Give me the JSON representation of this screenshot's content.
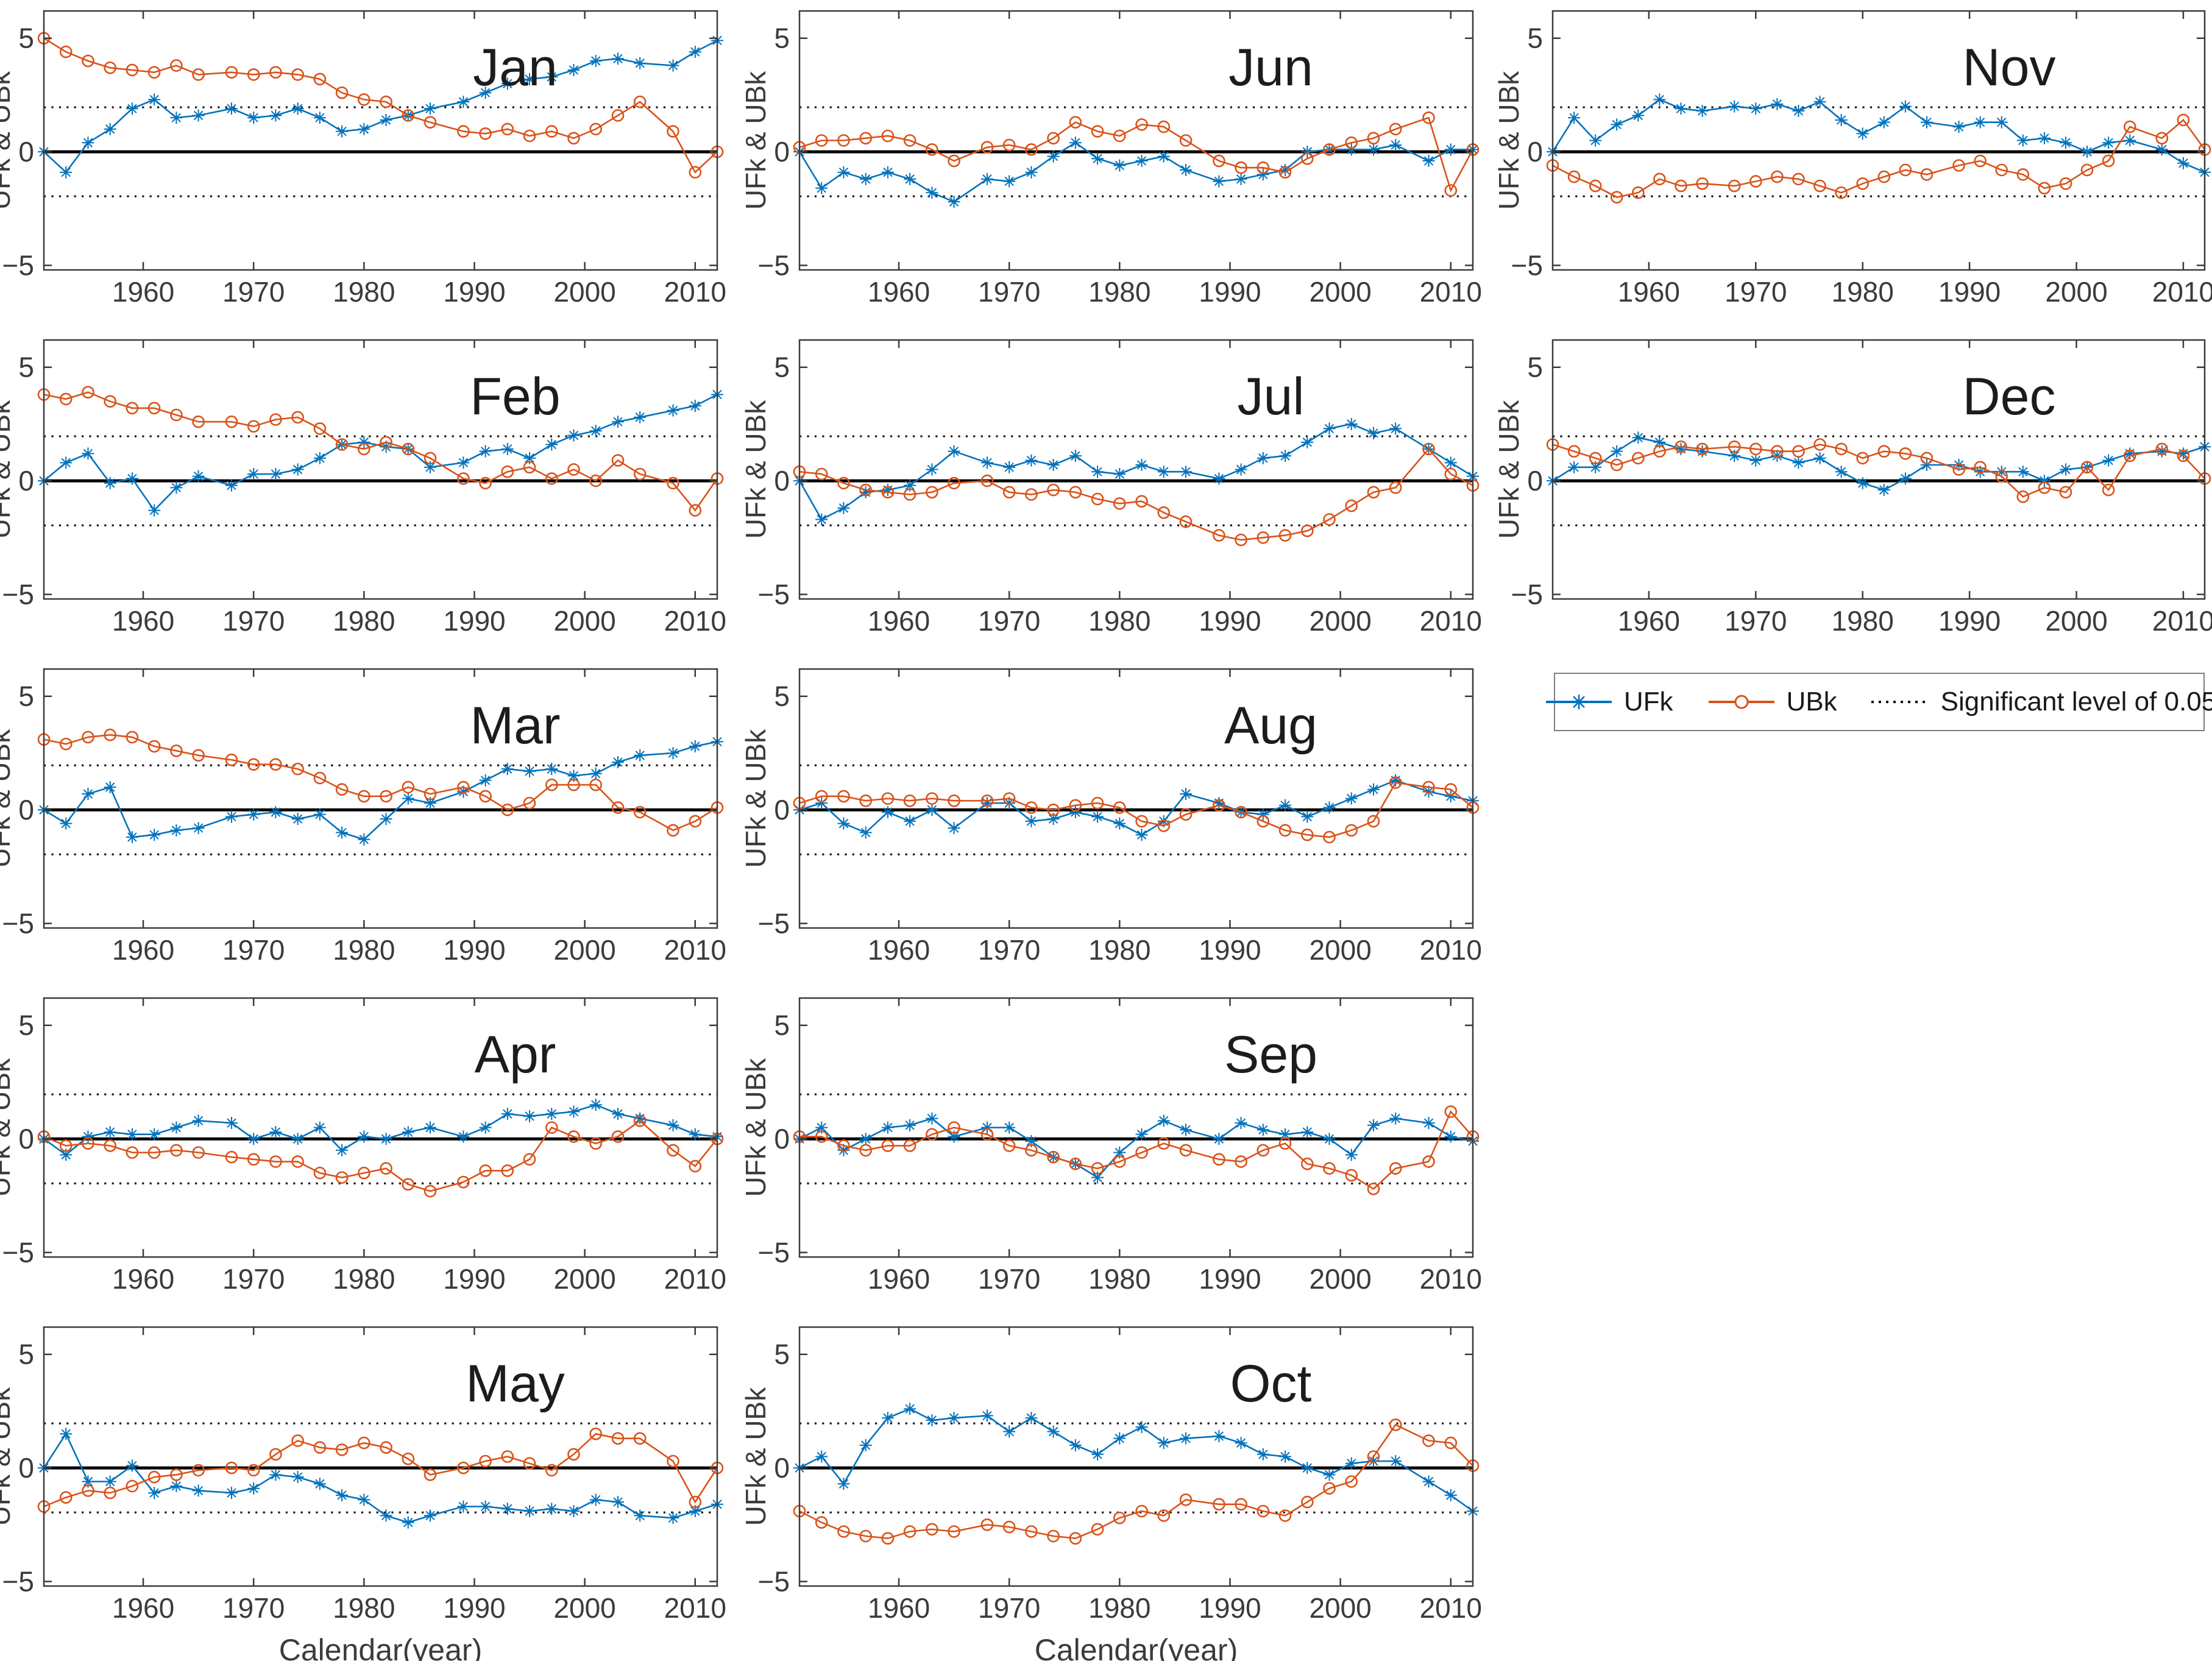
{
  "chart_data": {
    "type": "line",
    "xlabel": "Calendar(year)",
    "ylabel": "UFk & UBk",
    "x_ticks": [
      1960,
      1970,
      1980,
      1990,
      2000,
      2010
    ],
    "y_ticks": [
      5,
      0,
      -5
    ],
    "y_tick_labels": [
      "5",
      "0",
      "−5"
    ],
    "xlim": [
      1951,
      2012
    ],
    "ylim": [
      -5.2,
      6.2
    ],
    "grid": false,
    "significance_level": 1.96,
    "series_names": [
      "UFk",
      "UBk"
    ],
    "years": [
      1951,
      1953,
      1955,
      1957,
      1959,
      1961,
      1963,
      1965,
      1968,
      1970,
      1972,
      1974,
      1976,
      1978,
      1980,
      1982,
      1984,
      1986,
      1989,
      1991,
      1993,
      1995,
      1997,
      1999,
      2001,
      2003,
      2005,
      2008,
      2010,
      2012
    ],
    "months": [
      {
        "title": "Jan",
        "ufk": [
          0,
          -0.9,
          0.4,
          1.0,
          1.9,
          2.3,
          1.5,
          1.6,
          1.9,
          1.5,
          1.6,
          1.9,
          1.5,
          0.9,
          1.0,
          1.4,
          1.6,
          1.9,
          2.2,
          2.6,
          3.0,
          3.2,
          3.3,
          3.6,
          4.0,
          4.1,
          3.9,
          3.8,
          4.4,
          4.9
        ],
        "ubk": [
          5.0,
          4.4,
          4.0,
          3.7,
          3.6,
          3.5,
          3.8,
          3.4,
          3.5,
          3.4,
          3.5,
          3.4,
          3.2,
          2.6,
          2.3,
          2.2,
          1.6,
          1.3,
          0.9,
          0.8,
          1.0,
          0.7,
          0.9,
          0.6,
          1.0,
          1.6,
          2.2,
          0.9,
          -0.9,
          0.0
        ]
      },
      {
        "title": "Feb",
        "ufk": [
          0,
          0.8,
          1.2,
          -0.1,
          0.1,
          -1.3,
          -0.3,
          0.2,
          -0.2,
          0.3,
          0.3,
          0.5,
          1.0,
          1.6,
          1.7,
          1.5,
          1.4,
          0.6,
          0.8,
          1.3,
          1.4,
          1.0,
          1.6,
          2.0,
          2.2,
          2.6,
          2.8,
          3.1,
          3.3,
          3.8
        ],
        "ubk": [
          3.8,
          3.6,
          3.9,
          3.5,
          3.2,
          3.2,
          2.9,
          2.6,
          2.6,
          2.4,
          2.7,
          2.8,
          2.3,
          1.6,
          1.4,
          1.7,
          1.4,
          1.0,
          0.1,
          -0.1,
          0.4,
          0.6,
          0.1,
          0.5,
          0.0,
          0.9,
          0.3,
          -0.1,
          -1.3,
          0.1
        ]
      },
      {
        "title": "Mar",
        "ufk": [
          0,
          -0.6,
          0.7,
          1.0,
          -1.2,
          -1.1,
          -0.9,
          -0.8,
          -0.3,
          -0.2,
          -0.1,
          -0.4,
          -0.2,
          -1.0,
          -1.3,
          -0.4,
          0.5,
          0.3,
          0.8,
          1.3,
          1.8,
          1.7,
          1.8,
          1.5,
          1.6,
          2.1,
          2.4,
          2.5,
          2.8,
          3.0
        ],
        "ubk": [
          3.1,
          2.9,
          3.2,
          3.3,
          3.2,
          2.8,
          2.6,
          2.4,
          2.2,
          2.0,
          2.0,
          1.8,
          1.4,
          0.9,
          0.6,
          0.6,
          1.0,
          0.7,
          1.0,
          0.6,
          0.0,
          0.3,
          1.1,
          1.1,
          1.1,
          0.1,
          -0.1,
          -0.9,
          -0.5,
          0.1
        ]
      },
      {
        "title": "Apr",
        "ufk": [
          0,
          -0.7,
          0.1,
          0.3,
          0.2,
          0.2,
          0.5,
          0.8,
          0.7,
          0.0,
          0.3,
          0.0,
          0.5,
          -0.5,
          0.1,
          0.0,
          0.3,
          0.5,
          0.1,
          0.5,
          1.1,
          1.0,
          1.1,
          1.2,
          1.5,
          1.1,
          0.9,
          0.6,
          0.2,
          0.1
        ],
        "ubk": [
          0.1,
          -0.3,
          -0.2,
          -0.3,
          -0.6,
          -0.6,
          -0.5,
          -0.6,
          -0.8,
          -0.9,
          -1.0,
          -1.0,
          -1.5,
          -1.7,
          -1.5,
          -1.3,
          -2.0,
          -2.3,
          -1.9,
          -1.4,
          -1.4,
          -0.9,
          0.5,
          0.1,
          -0.2,
          0.1,
          0.8,
          -0.5,
          -1.2,
          0.0
        ]
      },
      {
        "title": "May",
        "ufk": [
          0,
          1.5,
          -0.6,
          -0.6,
          0.1,
          -1.1,
          -0.8,
          -1.0,
          -1.1,
          -0.9,
          -0.3,
          -0.4,
          -0.7,
          -1.2,
          -1.4,
          -2.1,
          -2.4,
          -2.1,
          -1.7,
          -1.7,
          -1.8,
          -1.9,
          -1.8,
          -1.9,
          -1.4,
          -1.5,
          -2.1,
          -2.2,
          -1.9,
          -1.6
        ],
        "ubk": [
          -1.7,
          -1.3,
          -1.0,
          -1.1,
          -0.8,
          -0.4,
          -0.3,
          -0.1,
          0.0,
          -0.1,
          0.6,
          1.2,
          0.9,
          0.8,
          1.1,
          0.9,
          0.4,
          -0.3,
          0.0,
          0.3,
          0.5,
          0.2,
          -0.1,
          0.6,
          1.5,
          1.3,
          1.3,
          0.3,
          -1.5,
          0.0
        ]
      },
      {
        "title": "Jun",
        "ufk": [
          0,
          -1.6,
          -0.9,
          -1.2,
          -0.9,
          -1.2,
          -1.8,
          -2.2,
          -1.2,
          -1.3,
          -0.9,
          -0.2,
          0.4,
          -0.3,
          -0.6,
          -0.4,
          -0.2,
          -0.8,
          -1.3,
          -1.2,
          -1.0,
          -0.8,
          0.0,
          0.1,
          0.1,
          0.1,
          0.3,
          -0.4,
          0.1,
          0.1
        ],
        "ubk": [
          0.2,
          0.5,
          0.5,
          0.6,
          0.7,
          0.5,
          0.1,
          -0.4,
          0.2,
          0.3,
          0.1,
          0.6,
          1.3,
          0.9,
          0.7,
          1.2,
          1.1,
          0.5,
          -0.4,
          -0.7,
          -0.7,
          -0.9,
          -0.3,
          0.1,
          0.4,
          0.6,
          1.0,
          1.5,
          -1.7,
          0.1
        ]
      },
      {
        "title": "Jul",
        "ufk": [
          0,
          -1.7,
          -1.2,
          -0.5,
          -0.4,
          -0.2,
          0.5,
          1.3,
          0.8,
          0.6,
          0.9,
          0.7,
          1.1,
          0.4,
          0.3,
          0.7,
          0.4,
          0.4,
          0.1,
          0.5,
          1.0,
          1.1,
          1.7,
          2.3,
          2.5,
          2.1,
          2.3,
          1.4,
          0.8,
          0.2
        ],
        "ubk": [
          0.4,
          0.3,
          -0.1,
          -0.4,
          -0.5,
          -0.6,
          -0.5,
          -0.1,
          0.0,
          -0.5,
          -0.6,
          -0.4,
          -0.5,
          -0.8,
          -1.0,
          -0.9,
          -1.4,
          -1.8,
          -2.4,
          -2.6,
          -2.5,
          -2.4,
          -2.2,
          -1.7,
          -1.1,
          -0.5,
          -0.3,
          1.4,
          0.3,
          -0.2
        ]
      },
      {
        "title": "Aug",
        "ufk": [
          0,
          0.3,
          -0.6,
          -1.0,
          -0.1,
          -0.5,
          0.0,
          -0.8,
          0.3,
          0.3,
          -0.5,
          -0.4,
          -0.1,
          -0.3,
          -0.6,
          -1.1,
          -0.5,
          0.7,
          0.3,
          -0.1,
          -0.2,
          0.2,
          -0.3,
          0.1,
          0.5,
          0.9,
          1.3,
          0.8,
          0.6,
          0.4
        ],
        "ubk": [
          0.3,
          0.6,
          0.6,
          0.4,
          0.5,
          0.4,
          0.5,
          0.4,
          0.4,
          0.5,
          0.1,
          0.0,
          0.2,
          0.3,
          0.1,
          -0.5,
          -0.7,
          -0.2,
          0.2,
          -0.1,
          -0.5,
          -0.9,
          -1.1,
          -1.2,
          -0.9,
          -0.5,
          1.2,
          1.0,
          0.9,
          0.1
        ]
      },
      {
        "title": "Sep",
        "ufk": [
          0,
          0.5,
          -0.5,
          0.0,
          0.5,
          0.6,
          0.9,
          0.1,
          0.5,
          0.5,
          -0.1,
          -0.8,
          -1.1,
          -1.7,
          -0.6,
          0.2,
          0.8,
          0.4,
          0.0,
          0.7,
          0.4,
          0.2,
          0.3,
          0.0,
          -0.7,
          0.6,
          0.9,
          0.7,
          0.1,
          -0.1
        ],
        "ubk": [
          0.1,
          0.1,
          -0.3,
          -0.5,
          -0.3,
          -0.3,
          0.2,
          0.5,
          0.2,
          -0.3,
          -0.5,
          -0.8,
          -1.1,
          -1.3,
          -1.0,
          -0.6,
          -0.2,
          -0.5,
          -0.9,
          -1.0,
          -0.5,
          -0.2,
          -1.1,
          -1.3,
          -1.6,
          -2.2,
          -1.3,
          -1.0,
          1.2,
          0.1
        ]
      },
      {
        "title": "Oct",
        "ufk": [
          0,
          0.5,
          -0.7,
          1.0,
          2.2,
          2.6,
          2.1,
          2.2,
          2.3,
          1.6,
          2.2,
          1.6,
          1.0,
          0.6,
          1.3,
          1.8,
          1.1,
          1.3,
          1.4,
          1.1,
          0.6,
          0.5,
          0.0,
          -0.3,
          0.2,
          0.3,
          0.3,
          -0.6,
          -1.2,
          -1.9
        ],
        "ubk": [
          -1.9,
          -2.4,
          -2.8,
          -3.0,
          -3.1,
          -2.8,
          -2.7,
          -2.8,
          -2.5,
          -2.6,
          -2.8,
          -3.0,
          -3.1,
          -2.7,
          -2.2,
          -1.9,
          -2.1,
          -1.4,
          -1.6,
          -1.6,
          -1.9,
          -2.1,
          -1.5,
          -0.9,
          -0.6,
          0.5,
          1.9,
          1.2,
          1.1,
          0.1
        ]
      },
      {
        "title": "Nov",
        "ufk": [
          0,
          1.5,
          0.5,
          1.2,
          1.6,
          2.3,
          1.9,
          1.8,
          2.0,
          1.9,
          2.1,
          1.8,
          2.2,
          1.4,
          0.8,
          1.3,
          2.0,
          1.3,
          1.1,
          1.3,
          1.3,
          0.5,
          0.6,
          0.4,
          0.0,
          0.4,
          0.5,
          0.1,
          -0.5,
          -0.9
        ],
        "ubk": [
          -0.6,
          -1.1,
          -1.5,
          -2.0,
          -1.8,
          -1.2,
          -1.5,
          -1.4,
          -1.5,
          -1.3,
          -1.1,
          -1.2,
          -1.5,
          -1.8,
          -1.4,
          -1.1,
          -0.8,
          -1.0,
          -0.6,
          -0.4,
          -0.8,
          -1.0,
          -1.6,
          -1.4,
          -0.8,
          -0.4,
          1.1,
          0.6,
          1.4,
          0.1
        ]
      },
      {
        "title": "Dec",
        "ufk": [
          0,
          0.6,
          0.6,
          1.3,
          1.9,
          1.7,
          1.4,
          1.3,
          1.1,
          0.9,
          1.1,
          0.8,
          1.0,
          0.4,
          -0.1,
          -0.4,
          0.1,
          0.7,
          0.7,
          0.4,
          0.4,
          0.4,
          0.0,
          0.5,
          0.6,
          0.9,
          1.2,
          1.3,
          1.2,
          1.5
        ],
        "ubk": [
          1.6,
          1.3,
          1.0,
          0.7,
          1.0,
          1.3,
          1.5,
          1.4,
          1.5,
          1.4,
          1.3,
          1.3,
          1.6,
          1.4,
          1.0,
          1.3,
          1.2,
          1.0,
          0.5,
          0.6,
          0.2,
          -0.7,
          -0.3,
          -0.5,
          0.6,
          -0.4,
          1.1,
          1.4,
          1.1,
          0.1
        ]
      }
    ],
    "legend_position": "below Dec subplot, right column"
  },
  "legend": {
    "ufk_label": "UFk",
    "ubk_label": "UBk",
    "sig_label": "Significant level of 0.05"
  },
  "colors": {
    "ufk": "#0072BD",
    "ubk": "#D95319",
    "axis": "#3B3B3B",
    "text": "#3B3B3B",
    "title": "#1C1C1C",
    "sig": "#111111"
  }
}
